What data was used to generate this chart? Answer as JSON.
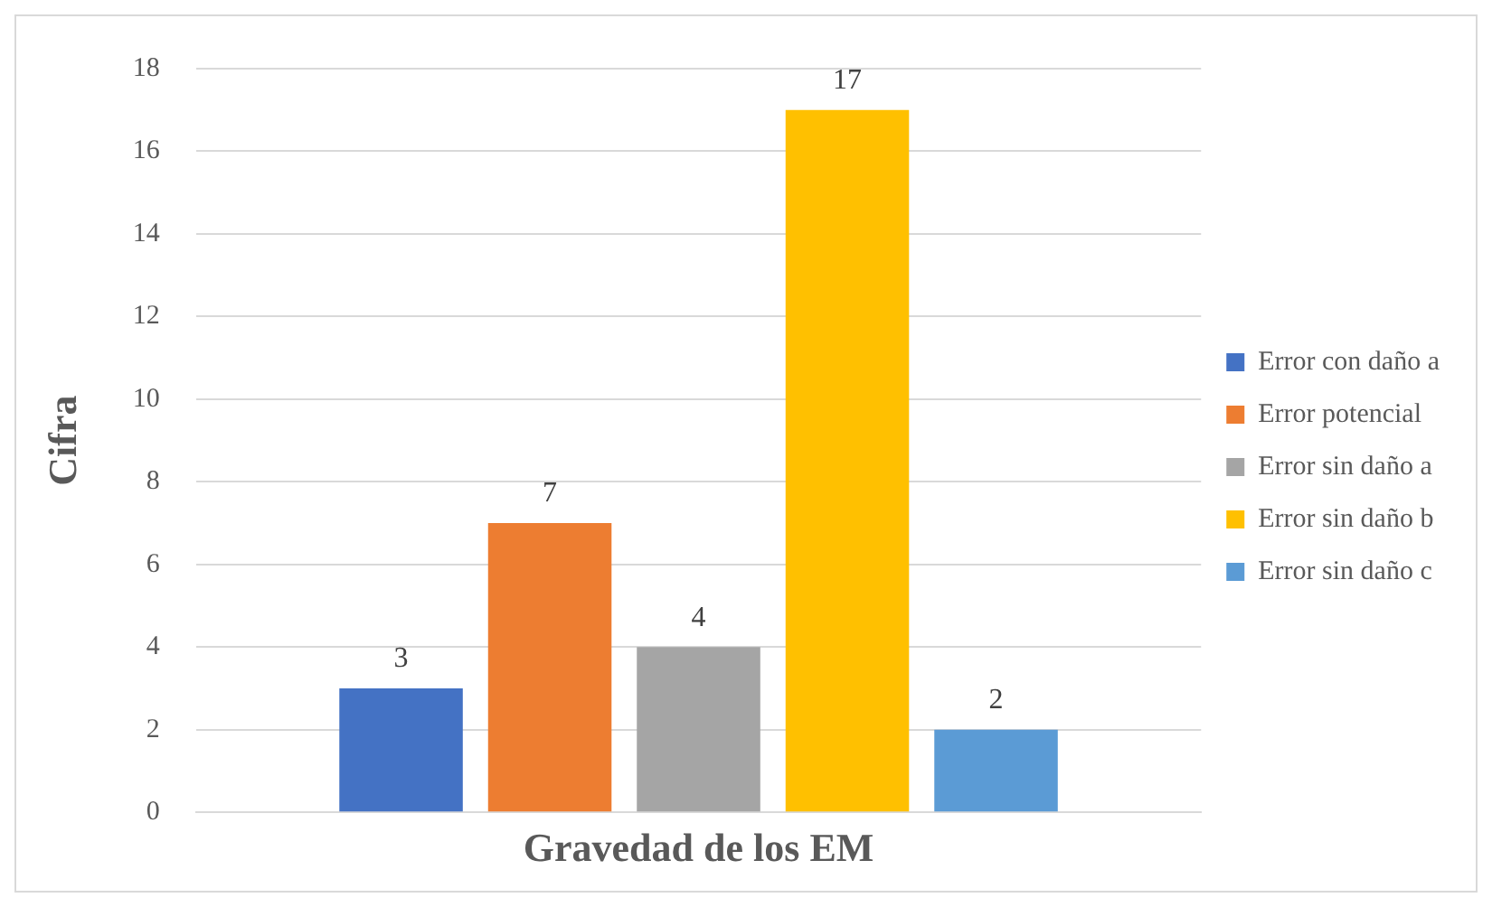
{
  "chart_data": {
    "type": "bar",
    "xlabel": "Gravedad de los EM",
    "ylabel": "Cifra",
    "categories": [
      null
    ],
    "series": [
      {
        "name": "Error con daño a",
        "color": "#4472c4",
        "values": [
          3
        ]
      },
      {
        "name": "Error potencial",
        "color": "#ed7d31",
        "values": [
          7
        ]
      },
      {
        "name": "Error sin daño a",
        "color": "#a5a5a5",
        "values": [
          4
        ]
      },
      {
        "name": "Error sin daño b",
        "color": "#ffc000",
        "values": [
          17
        ]
      },
      {
        "name": "Error sin daño c",
        "color": "#5b9bd5",
        "values": [
          2
        ]
      }
    ],
    "ylim": [
      0,
      18
    ],
    "yticks": [
      0,
      2,
      4,
      6,
      8,
      10,
      12,
      14,
      16,
      18
    ],
    "grid": "y",
    "legend": "right",
    "data_labels": true
  }
}
